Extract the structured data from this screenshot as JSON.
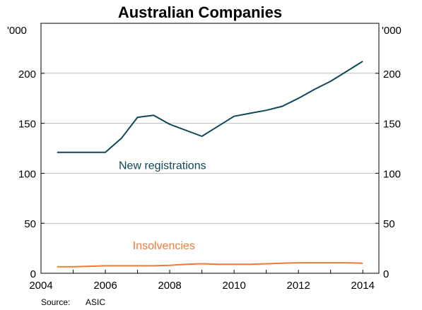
{
  "chart_data": {
    "type": "line",
    "title": "Australian Companies",
    "y_unit_left": "'000",
    "y_unit_right": "'000",
    "xlim": [
      2004,
      2014.5
    ],
    "ylim": [
      0,
      250
    ],
    "x_ticks": [
      2004,
      2006,
      2008,
      2010,
      2012,
      2014
    ],
    "y_ticks": [
      0,
      50,
      100,
      150,
      200
    ],
    "grid": "horizontal",
    "source_label": "Source:",
    "source_value": "ASIC",
    "series": [
      {
        "name": "New registrations",
        "color": "#0e4755",
        "label_position": "middle",
        "x": [
          2004.5,
          2005.0,
          2005.5,
          2006.0,
          2006.5,
          2007.0,
          2007.5,
          2008.0,
          2008.5,
          2009.0,
          2009.5,
          2010.0,
          2010.5,
          2011.0,
          2011.5,
          2012.0,
          2012.5,
          2013.0,
          2013.5,
          2014.0
        ],
        "y": [
          121,
          121,
          121,
          121,
          135,
          156,
          158,
          149,
          143,
          137,
          147,
          157,
          160,
          163,
          167,
          175,
          184,
          192,
          202,
          212
        ]
      },
      {
        "name": "Insolvencies",
        "color": "#f07a3a",
        "label_position": "bottom",
        "x": [
          2004.5,
          2005.0,
          2005.5,
          2006.0,
          2006.5,
          2007.0,
          2007.5,
          2008.0,
          2008.5,
          2009.0,
          2009.5,
          2010.0,
          2010.5,
          2011.0,
          2011.5,
          2012.0,
          2012.5,
          2013.0,
          2013.5,
          2014.0
        ],
        "y": [
          6.5,
          6.5,
          7,
          7.5,
          7.5,
          7.5,
          7.5,
          8,
          9,
          9.5,
          9,
          9,
          9,
          9.5,
          10,
          10.5,
          10.5,
          10.5,
          10.5,
          10
        ]
      }
    ]
  }
}
